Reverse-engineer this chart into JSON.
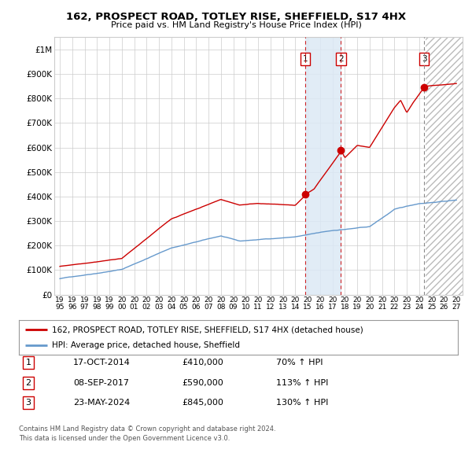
{
  "title": "162, PROSPECT ROAD, TOTLEY RISE, SHEFFIELD, S17 4HX",
  "subtitle": "Price paid vs. HM Land Registry's House Price Index (HPI)",
  "legend_line1": "162, PROSPECT ROAD, TOTLEY RISE, SHEFFIELD, S17 4HX (detached house)",
  "legend_line2": "HPI: Average price, detached house, Sheffield",
  "transactions": [
    {
      "num": 1,
      "date": "17-OCT-2014",
      "price": 410000,
      "pct": "70%",
      "year": 2014.79
    },
    {
      "num": 2,
      "date": "08-SEP-2017",
      "price": 590000,
      "pct": "113%",
      "year": 2017.69
    },
    {
      "num": 3,
      "date": "23-MAY-2024",
      "price": 845000,
      "pct": "130%",
      "year": 2024.39
    }
  ],
  "ylim": [
    0,
    1050000
  ],
  "xlim_start": 1995,
  "xlim_end": 2027,
  "red_color": "#cc0000",
  "blue_color": "#6699cc",
  "background_color": "#ffffff",
  "grid_color": "#cccccc",
  "footnote1": "Contains HM Land Registry data © Crown copyright and database right 2024.",
  "footnote2": "This data is licensed under the Open Government Licence v3.0."
}
